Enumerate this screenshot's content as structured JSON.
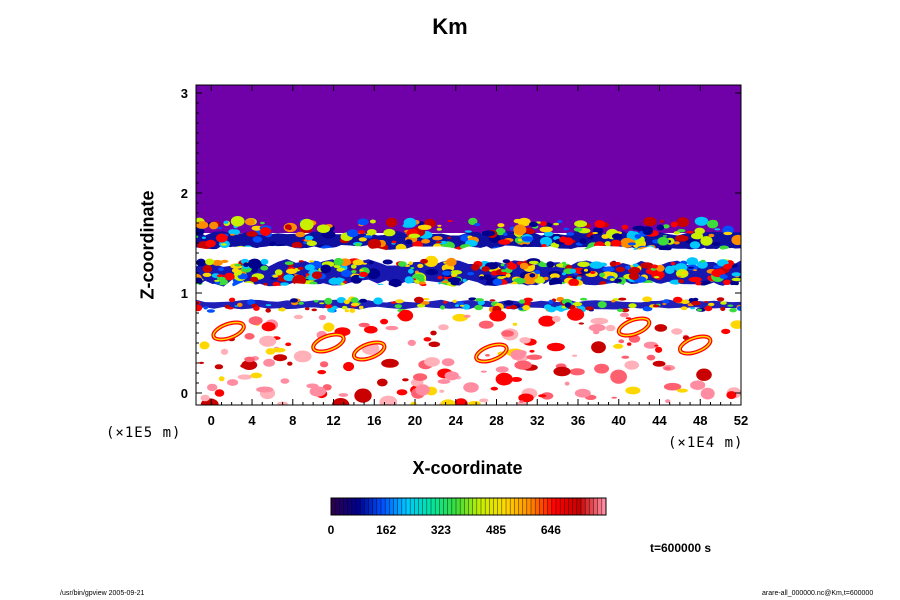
{
  "chart_data": {
    "type": "heatmap",
    "title": "Km",
    "xlabel": "X-coordinate",
    "ylabel": "Z-coordinate",
    "x_scale_label": "(×1E4 m)",
    "y_scale_label": "(×1E5 m)",
    "xlim": [
      -1.5,
      52
    ],
    "ylim": [
      -0.12,
      3.08
    ],
    "x_ticks": [
      "0",
      "4",
      "8",
      "12",
      "16",
      "20",
      "24",
      "28",
      "32",
      "36",
      "40",
      "44",
      "48",
      "52"
    ],
    "y_ticks": [
      "0",
      "1",
      "2",
      "3"
    ],
    "colorbar": {
      "ticks": [
        "0",
        "162",
        "323",
        "485",
        "646"
      ],
      "tick_values": [
        0,
        162,
        323,
        485,
        646
      ],
      "range": [
        0,
        808
      ],
      "colors": [
        "#2a0050",
        "#00008c",
        "#0050ff",
        "#00c8ff",
        "#00e6a0",
        "#3cdc3c",
        "#c8f000",
        "#ffd700",
        "#ff8c00",
        "#ff0000",
        "#c80000",
        "#ff8ca0"
      ]
    },
    "background_color": "#7000a8",
    "annotation": "t=600000 s",
    "bands": [
      {
        "z_lo": 1.45,
        "z_hi": 1.6,
        "description": "layered turbulent band, upper"
      },
      {
        "z_lo": 1.3,
        "z_hi": 1.45,
        "description": "white band"
      },
      {
        "z_lo": 1.08,
        "z_hi": 1.3,
        "description": "turbulent band, middle"
      },
      {
        "z_lo": 0.92,
        "z_hi": 1.08,
        "description": "white band"
      },
      {
        "z_lo": 0.85,
        "z_hi": 0.92,
        "description": "turbulent band, lower"
      }
    ]
  },
  "footer": {
    "left": "/usr/bin/gpview 2005-09-21",
    "right": "arare-all_000000.nc@Km,t=600000"
  }
}
